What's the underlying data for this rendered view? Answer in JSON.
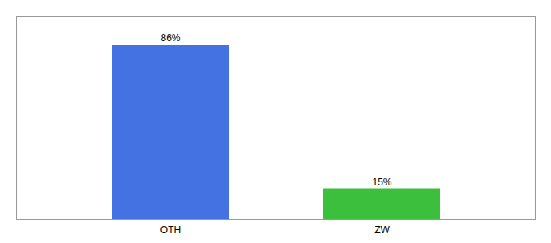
{
  "chart_data": {
    "type": "bar",
    "categories": [
      "OTH",
      "ZW"
    ],
    "values": [
      86,
      15
    ],
    "colors": [
      "#4472E3",
      "#3CBF3C"
    ],
    "value_labels": [
      "86%",
      "15%"
    ],
    "data_labels": true,
    "ylim": [
      0,
      100
    ],
    "tick_labels": "x",
    "grid": false
  }
}
